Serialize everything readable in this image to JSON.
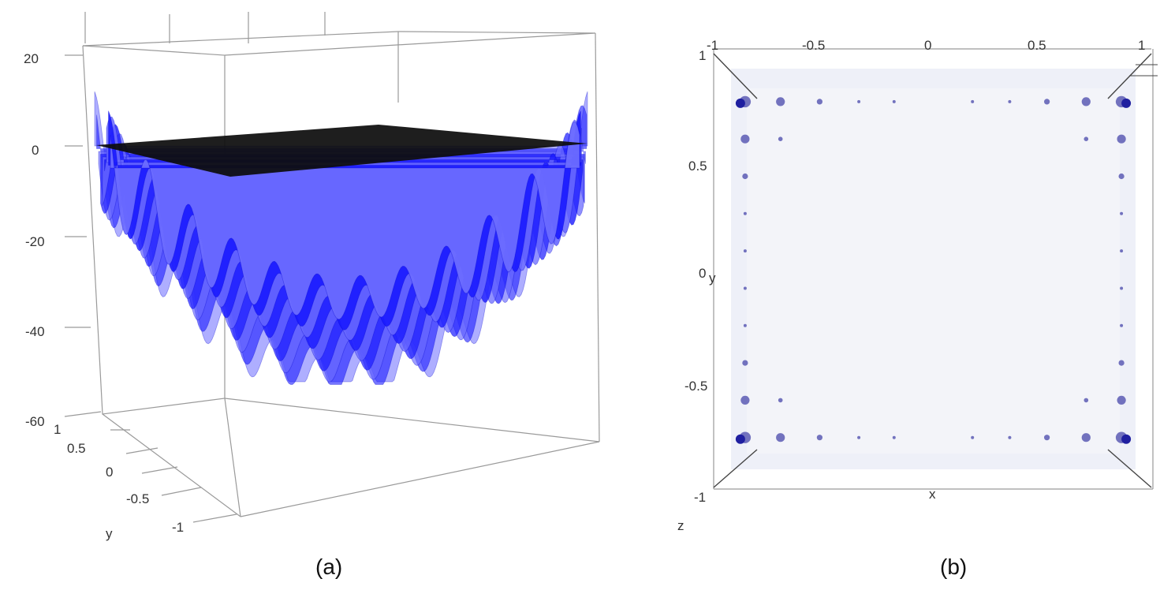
{
  "colors": {
    "surface": "#1a1aff",
    "surface_light": "#6b6bff",
    "plane": "#0d0d0d",
    "projection_fill": "#eceef7",
    "blob": "#5a5ab4",
    "blob_dark": "#1f1fa0",
    "box": "#9a9a9a"
  },
  "chart_data": [
    {
      "type": "surface",
      "panel": "(a)",
      "caption": "(a)",
      "zlabel": "",
      "ylabel": "y",
      "z_ticks": [
        "20",
        "0",
        "-20",
        "-40",
        "-60"
      ],
      "y_ticks": [
        "1",
        "0.5",
        "0",
        "-0.5",
        "-1"
      ],
      "zlim": [
        -60,
        20
      ],
      "ylim": [
        -1,
        1
      ],
      "xlim": [
        -1,
        1
      ],
      "surface": "oscillating paraboloid (bowl with ripples)",
      "plane_z": 0,
      "grid": false
    },
    {
      "type": "projection",
      "panel": "(b)",
      "caption": "(b)",
      "xlabel": "x",
      "ylabel": "y",
      "zlabel": "z",
      "x_ticks": [
        "-1",
        "-0.5",
        "0",
        "0.5",
        "1"
      ],
      "y_ticks": [
        "1",
        "0.5",
        "0",
        "-0.5",
        "-1"
      ],
      "xlim": [
        -1,
        1
      ],
      "ylim": [
        -1,
        1
      ],
      "view": "top-down",
      "grid": false,
      "blobs": [
        {
          "x": -0.96,
          "y": 0.9,
          "r": 0.09
        },
        {
          "x": -0.78,
          "y": 0.9,
          "r": 0.07
        },
        {
          "x": -0.58,
          "y": 0.9,
          "r": 0.045
        },
        {
          "x": -0.38,
          "y": 0.9,
          "r": 0.025
        },
        {
          "x": -0.2,
          "y": 0.9,
          "r": 0.01
        },
        {
          "x": 0.2,
          "y": 0.9,
          "r": 0.01
        },
        {
          "x": 0.39,
          "y": 0.9,
          "r": 0.025
        },
        {
          "x": 0.58,
          "y": 0.9,
          "r": 0.045
        },
        {
          "x": 0.78,
          "y": 0.9,
          "r": 0.07
        },
        {
          "x": 0.96,
          "y": 0.9,
          "r": 0.09
        },
        {
          "x": -0.96,
          "y": 0.71,
          "r": 0.07
        },
        {
          "x": -0.78,
          "y": 0.71,
          "r": 0.035
        },
        {
          "x": 0.78,
          "y": 0.71,
          "r": 0.035
        },
        {
          "x": 0.96,
          "y": 0.71,
          "r": 0.07
        },
        {
          "x": -0.96,
          "y": 0.52,
          "r": 0.045
        },
        {
          "x": 0.96,
          "y": 0.52,
          "r": 0.045
        },
        {
          "x": -0.96,
          "y": 0.33,
          "r": 0.025
        },
        {
          "x": 0.96,
          "y": 0.33,
          "r": 0.025
        },
        {
          "x": -0.96,
          "y": 0.14,
          "r": 0.01
        },
        {
          "x": 0.96,
          "y": 0.14,
          "r": 0.01
        },
        {
          "x": -0.96,
          "y": -0.05,
          "r": 0.01
        },
        {
          "x": 0.96,
          "y": -0.05,
          "r": 0.01
        },
        {
          "x": -0.96,
          "y": -0.24,
          "r": 0.025
        },
        {
          "x": 0.96,
          "y": -0.24,
          "r": 0.025
        },
        {
          "x": -0.96,
          "y": -0.43,
          "r": 0.045
        },
        {
          "x": 0.96,
          "y": -0.43,
          "r": 0.045
        },
        {
          "x": -0.96,
          "y": -0.62,
          "r": 0.07
        },
        {
          "x": -0.78,
          "y": -0.62,
          "r": 0.035
        },
        {
          "x": 0.78,
          "y": -0.62,
          "r": 0.035
        },
        {
          "x": 0.96,
          "y": -0.62,
          "r": 0.07
        },
        {
          "x": -0.96,
          "y": -0.81,
          "r": 0.09
        },
        {
          "x": -0.78,
          "y": -0.81,
          "r": 0.07
        },
        {
          "x": -0.58,
          "y": -0.81,
          "r": 0.045
        },
        {
          "x": -0.38,
          "y": -0.81,
          "r": 0.025
        },
        {
          "x": -0.2,
          "y": -0.81,
          "r": 0.01
        },
        {
          "x": 0.2,
          "y": -0.81,
          "r": 0.01
        },
        {
          "x": 0.39,
          "y": -0.81,
          "r": 0.025
        },
        {
          "x": 0.58,
          "y": -0.81,
          "r": 0.045
        },
        {
          "x": 0.78,
          "y": -0.81,
          "r": 0.07
        },
        {
          "x": 0.96,
          "y": -0.81,
          "r": 0.09
        }
      ]
    }
  ]
}
